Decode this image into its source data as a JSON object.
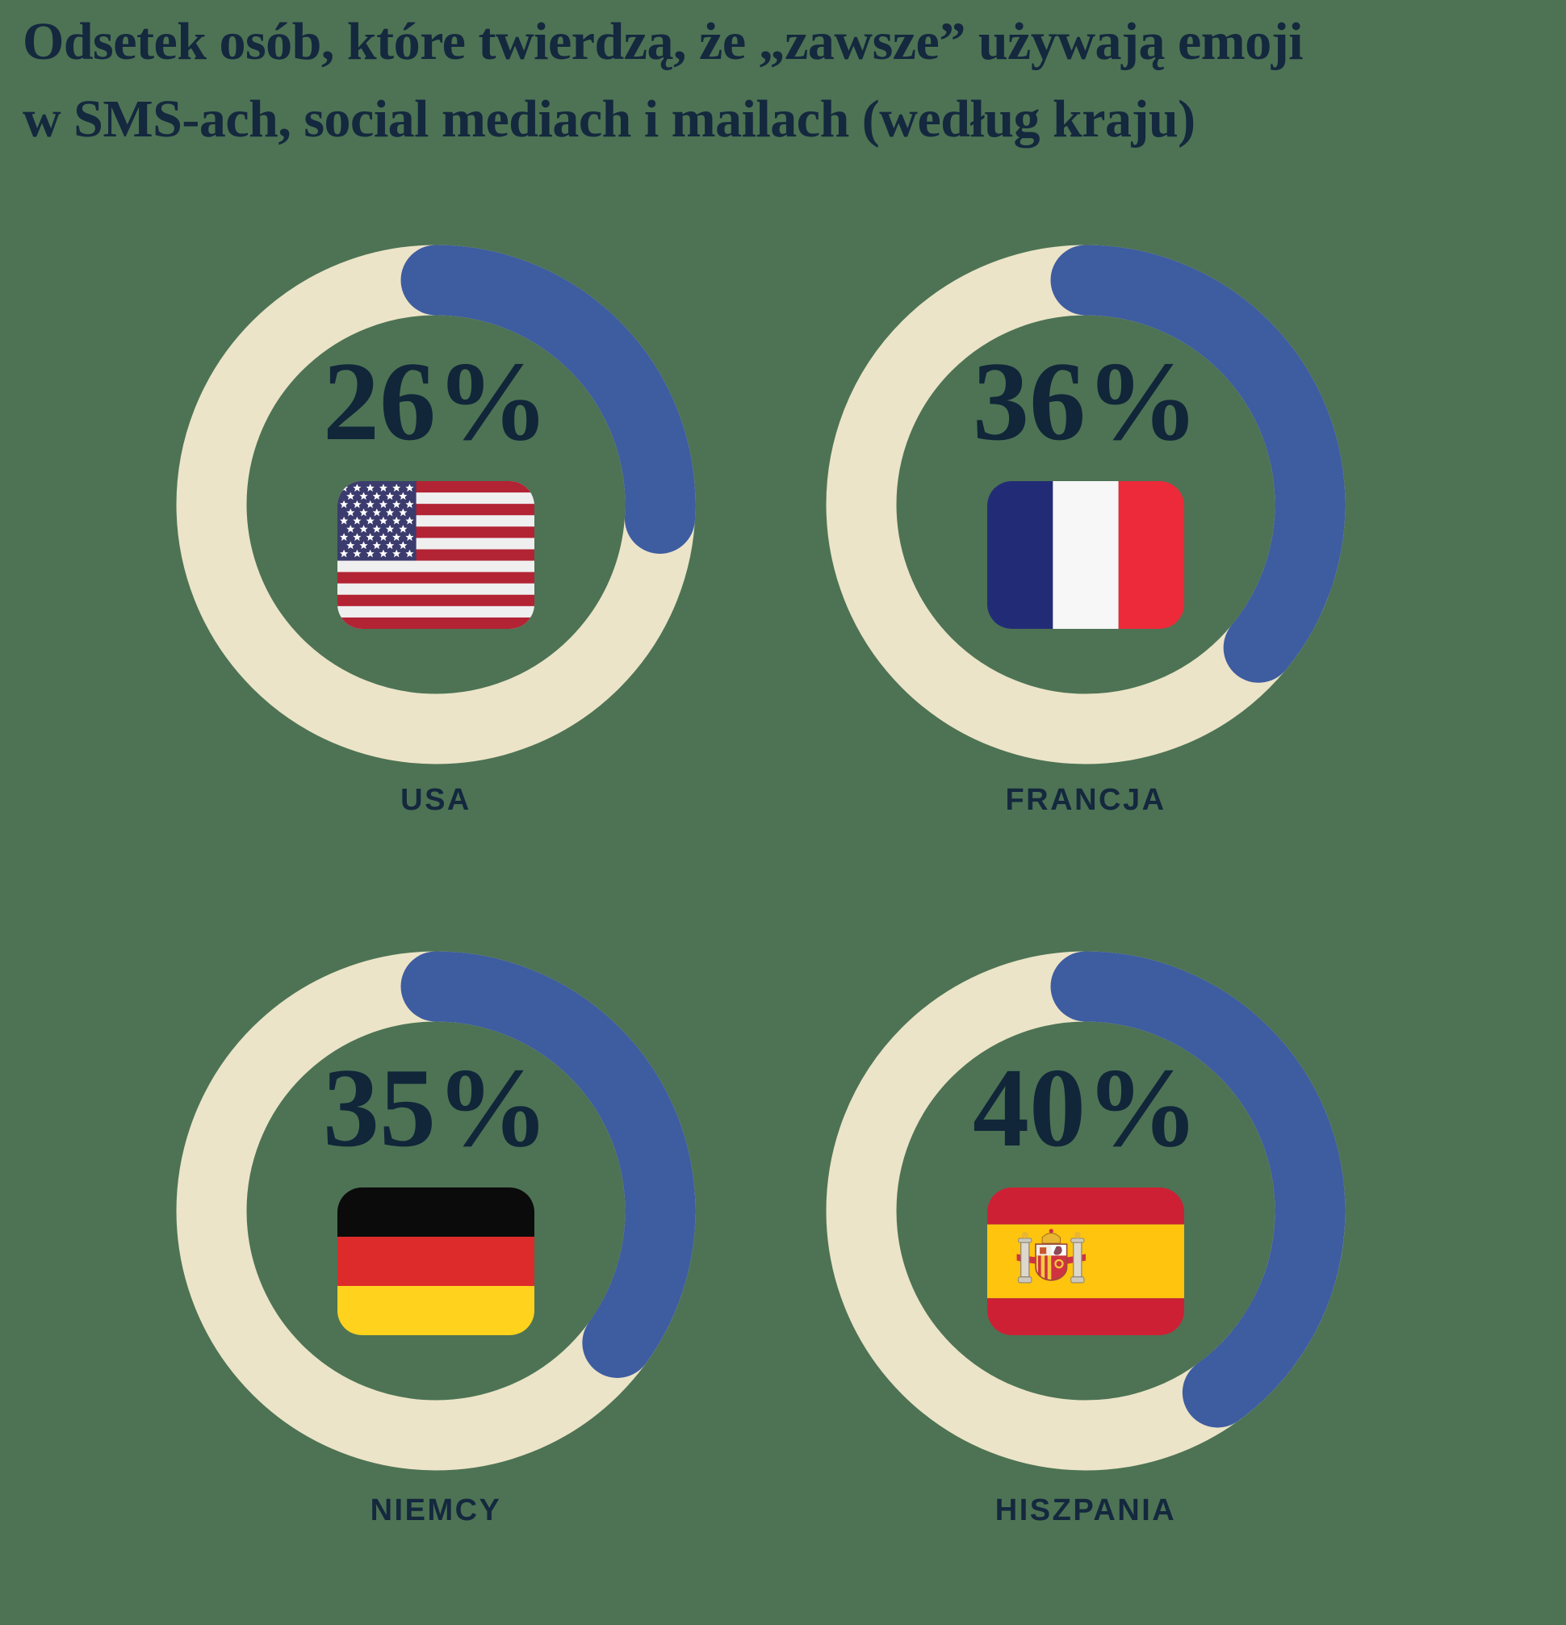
{
  "title": {
    "line1": "Odsetek osób, które twierdzą, że „zawsze” używają emoji",
    "line2": "w SMS-ach, social mediach i mailach (według kraju)"
  },
  "chart_data": {
    "type": "donut",
    "title": "Odsetek osób, które twierdzą, że „zawsze” używają emoji w SMS-ach, social mediach i mailach (według kraju)",
    "unit": "%",
    "legend_position": "none",
    "series": [
      {
        "country": "USA",
        "label": "USA",
        "value": 26,
        "display": "26%",
        "flag": "united-states"
      },
      {
        "country": "Francja",
        "label": "FRANCJA",
        "value": 36,
        "display": "36%",
        "flag": "france"
      },
      {
        "country": "Niemcy",
        "label": "NIEMCY",
        "value": 35,
        "display": "35%",
        "flag": "germany"
      },
      {
        "country": "Hiszpania",
        "label": "HISZPANIA",
        "value": 40,
        "display": "40%",
        "flag": "spain"
      }
    ],
    "ring": {
      "start": "top",
      "direction": "clockwise",
      "track_color": "#ece4c8",
      "arc_color": "#3e5ca0"
    }
  },
  "colors": {
    "background": "#4d7354",
    "text_navy": "#14283e",
    "arc_blue": "#3e5ca0",
    "ring_cream": "#ece4c8"
  }
}
